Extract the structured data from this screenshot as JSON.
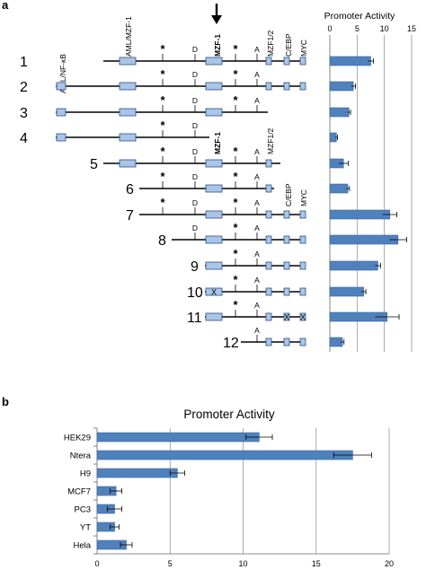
{
  "panel_a": {
    "letter": "a",
    "labels": {
      "aml_nfkb": "AML/NF-κB",
      "aml_mzf1": "AML/MZF-1",
      "mzf1_bold": "MZF-1",
      "mzf12": "MZF1/2",
      "cebp": "C/EBP",
      "myc": "MYC",
      "D": "D",
      "A": "A",
      "star": "*",
      "x": "X"
    },
    "rows": [
      {
        "num": "1",
        "start": 115,
        "end": 338,
        "boxes": [
          137,
          233,
          298,
          318,
          336
        ],
        "stars": [
          181,
          262
        ],
        "D": 217,
        "A": 286,
        "x_boxes": []
      },
      {
        "num": "2",
        "start": 62,
        "end": 338,
        "boxes": [
          67,
          137,
          233,
          298,
          318,
          336
        ],
        "stars": [
          181,
          262
        ],
        "D": 217,
        "A": 286,
        "x_boxes": []
      },
      {
        "num": "3",
        "start": 62,
        "end": 298,
        "boxes": [
          67,
          137,
          233
        ],
        "stars": [
          181,
          262
        ],
        "D": 217,
        "A": 286,
        "x_boxes": []
      },
      {
        "num": "4",
        "start": 62,
        "end": 233,
        "boxes": [
          67,
          137
        ],
        "stars": [
          181
        ],
        "D": 217,
        "A": null,
        "x_boxes": []
      },
      {
        "num": "5",
        "start": 115,
        "end": 312,
        "boxes": [
          137,
          233,
          298
        ],
        "stars": [
          181,
          262
        ],
        "D": 217,
        "A": 286,
        "x_boxes": []
      },
      {
        "num": "6",
        "start": 155,
        "end": 305,
        "boxes": [
          233,
          298
        ],
        "stars": [
          181,
          262
        ],
        "D": 217,
        "A": 286,
        "x_boxes": []
      },
      {
        "num": "7",
        "start": 155,
        "end": 338,
        "boxes": [
          233,
          298,
          318,
          336
        ],
        "stars": [
          181,
          262
        ],
        "D": 217,
        "A": 286,
        "x_boxes": []
      },
      {
        "num": "8",
        "start": 191,
        "end": 338,
        "boxes": [
          233,
          298,
          318,
          336
        ],
        "stars": [
          262
        ],
        "D": 217,
        "A": 286,
        "x_boxes": []
      },
      {
        "num": "9",
        "start": 228,
        "end": 338,
        "boxes": [
          233,
          298,
          318,
          336
        ],
        "stars": [
          262
        ],
        "D": null,
        "A": 286,
        "x_boxes": []
      },
      {
        "num": "10",
        "start": 228,
        "end": 338,
        "boxes": [
          233,
          298,
          318,
          336
        ],
        "stars": [
          262
        ],
        "D": null,
        "A": 286,
        "x_boxes": [
          233
        ]
      },
      {
        "num": "11",
        "start": 228,
        "end": 338,
        "boxes": [
          233,
          298,
          318,
          336
        ],
        "stars": [
          262
        ],
        "D": null,
        "A": 286,
        "x_boxes": [
          318,
          336
        ]
      },
      {
        "num": "12",
        "start": 268,
        "end": 338,
        "boxes": [
          298,
          318,
          336
        ],
        "stars": [],
        "D": null,
        "A": 286,
        "x_boxes": []
      }
    ]
  },
  "chart_data": [
    {
      "type": "bar",
      "orientation": "horizontal",
      "title": "Promoter Activity",
      "categories": [
        "1",
        "2",
        "3",
        "4",
        "5",
        "6",
        "7",
        "8",
        "9",
        "10",
        "11",
        "12"
      ],
      "values": [
        7.5,
        4.3,
        3.5,
        1.2,
        2.5,
        3.3,
        11.0,
        12.5,
        8.8,
        6.2,
        10.5,
        2.3
      ],
      "errors": [
        0.5,
        0.4,
        0.3,
        0.2,
        0.9,
        0.3,
        1.3,
        1.6,
        0.5,
        0.4,
        2.2,
        0.3
      ],
      "xlim": [
        0,
        15
      ],
      "xticks": [
        "0",
        "5",
        "10",
        "15"
      ],
      "grid": true
    },
    {
      "type": "bar",
      "orientation": "horizontal",
      "title": "Promoter Activity",
      "categories": [
        "HEK29",
        "Ntera",
        "H9",
        "MCF7",
        "PC3",
        "YT",
        "Hela"
      ],
      "values": [
        11.1,
        17.5,
        5.5,
        1.3,
        1.2,
        1.2,
        2.0
      ],
      "errors": [
        0.9,
        1.3,
        0.5,
        0.4,
        0.5,
        0.3,
        0.4
      ],
      "xlim": [
        0,
        20
      ],
      "xticks": [
        "0",
        "5",
        "10",
        "15",
        "20"
      ],
      "grid": true
    }
  ],
  "panel_b": {
    "letter": "b"
  }
}
